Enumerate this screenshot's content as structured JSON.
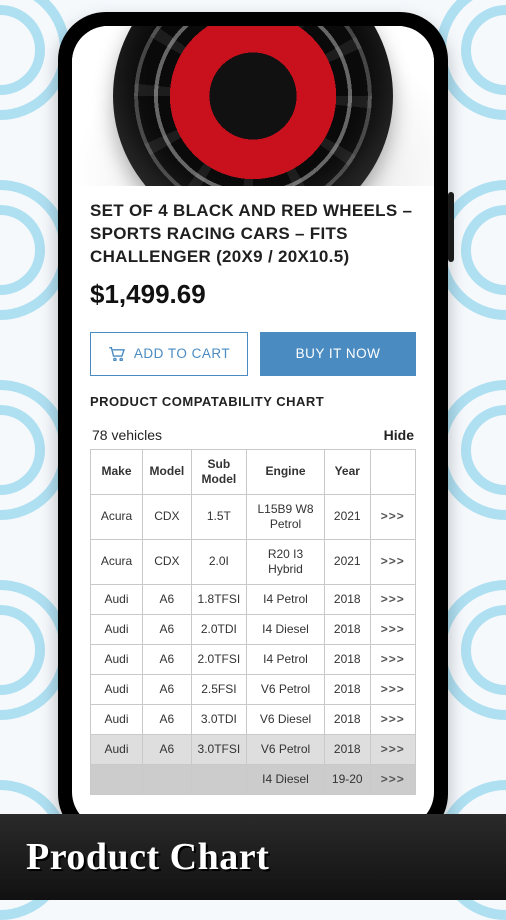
{
  "product": {
    "title": "SET OF 4 BLACK AND RED WHEELS – SPORTS RACING CARS – FITS CHALLENGER (20X9 / 20X10.5)",
    "price": "$1,499.69"
  },
  "buttons": {
    "add_to_cart": "ADD TO CART",
    "buy_now": "BUY IT NOW"
  },
  "section": {
    "heading": "PRODUCT COMPATABILITY CHART",
    "count_label": "78 vehicles",
    "hide_label": "Hide"
  },
  "table": {
    "columns": [
      "Make",
      "Model",
      "Sub Model",
      "Engine",
      "Year",
      ""
    ],
    "rows": [
      [
        "Acura",
        "CDX",
        "1.5T",
        "L15B9 W8 Petrol",
        "2021",
        ">>>"
      ],
      [
        "Acura",
        "CDX",
        "2.0I",
        "R20 I3 Hybrid",
        "2021",
        ">>>"
      ],
      [
        "Audi",
        "A6",
        "1.8TFSI",
        "I4 Petrol",
        "2018",
        ">>>"
      ],
      [
        "Audi",
        "A6",
        "2.0TDI",
        "I4 Diesel",
        "2018",
        ">>>"
      ],
      [
        "Audi",
        "A6",
        "2.0TFSI",
        "I4 Petrol",
        "2018",
        ">>>"
      ],
      [
        "Audi",
        "A6",
        "2.5FSI",
        "V6 Petrol",
        "2018",
        ">>>"
      ],
      [
        "Audi",
        "A6",
        "3.0TDI",
        "V6 Diesel",
        "2018",
        ">>>"
      ],
      [
        "Audi",
        "A6",
        "3.0TFSI",
        "V6 Petrol",
        "2018",
        ">>>"
      ],
      [
        "",
        "",
        "",
        "I4 Diesel",
        "19-20",
        ">>>"
      ]
    ]
  },
  "footer": {
    "label": "Product Chart"
  },
  "colors": {
    "accent": "#4a8bc2",
    "border": "#c9c9c9",
    "bg_ring": "#2fb3e0"
  }
}
